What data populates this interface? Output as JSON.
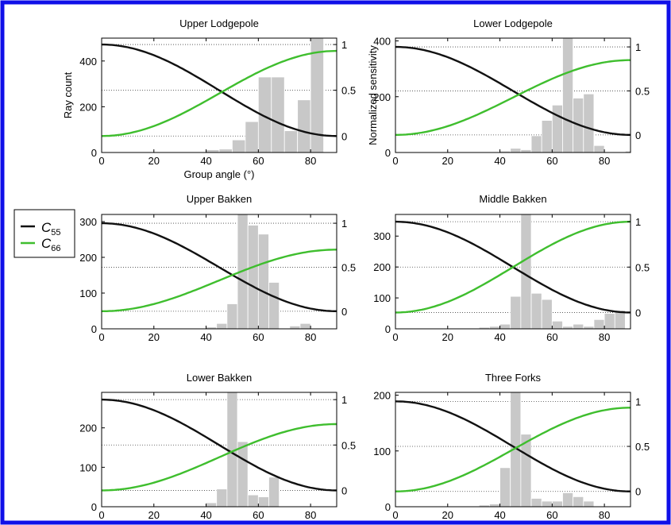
{
  "colors": {
    "frame": "#1010e8",
    "c55": "#111111",
    "c66": "#3fbe2e",
    "bars": "#c8c8c8",
    "grid": "#444444"
  },
  "legend": {
    "items": [
      {
        "key": "c55",
        "label_main": "C",
        "label_sub": "55"
      },
      {
        "key": "c66",
        "label_main": "C",
        "label_sub": "66"
      }
    ]
  },
  "chart_data": [
    {
      "type": "bar",
      "title": "Upper Lodgepole",
      "xlabel": "Group angle (°)",
      "ylabel": "Ray count",
      "y2label": "",
      "xlim": [
        0,
        90
      ],
      "xticks": [
        0,
        20,
        40,
        60,
        80
      ],
      "ylim": [
        0,
        500
      ],
      "yticks": [
        0,
        200,
        400
      ],
      "y2lim": [
        -0.18,
        1.07
      ],
      "y2ticks": [
        0,
        0.5,
        1
      ],
      "y2ticklabels": [
        "0",
        "0.5",
        "1"
      ],
      "grid": "right-axis dotted at 0, 0.5, 1",
      "histogram": {
        "bin_width": 5,
        "bin_starts": [
          0,
          5,
          10,
          15,
          20,
          25,
          30,
          35,
          40,
          45,
          50,
          55,
          60,
          65,
          70,
          75,
          80,
          85
        ],
        "counts": [
          0,
          0,
          0,
          0,
          0,
          0,
          0,
          2,
          12,
          15,
          55,
          135,
          330,
          330,
          95,
          230,
          500,
          0
        ]
      },
      "series": [
        {
          "name": "C55",
          "type": "line",
          "curve": "decreasing",
          "y_start": 1.0,
          "y_end": 0.0
        },
        {
          "name": "C66",
          "type": "line",
          "curve": "increasing",
          "y_start": 0.0,
          "y_end": 0.93
        }
      ]
    },
    {
      "type": "bar",
      "title": "Lower Lodgepole",
      "xlabel": "",
      "ylabel": "",
      "y2label": "Normalized sensitivity",
      "xlim": [
        0,
        90
      ],
      "xticks": [
        0,
        20,
        40,
        60,
        80
      ],
      "ylim": [
        0,
        410
      ],
      "yticks": [
        0,
        200,
        400
      ],
      "y2lim": [
        -0.2,
        1.1
      ],
      "y2ticks": [
        0,
        0.5,
        1
      ],
      "y2ticklabels": [
        "0",
        "0.5",
        "1"
      ],
      "grid": "right-axis dotted at 0, 0.5, 1",
      "histogram": {
        "bin_width": 4,
        "bin_starts": [
          0,
          4,
          8,
          12,
          16,
          20,
          24,
          28,
          32,
          36,
          40,
          44,
          48,
          52,
          56,
          60,
          64,
          68,
          72,
          76,
          80,
          84,
          88
        ],
        "counts": [
          0,
          0,
          0,
          0,
          0,
          0,
          0,
          0,
          0,
          2,
          5,
          15,
          10,
          60,
          115,
          170,
          415,
          195,
          210,
          25,
          0,
          0,
          5
        ]
      },
      "series": [
        {
          "name": "C55",
          "type": "line",
          "curve": "decreasing",
          "y_start": 1.0,
          "y_end": 0.0
        },
        {
          "name": "C66",
          "type": "line",
          "curve": "increasing",
          "y_start": 0.0,
          "y_end": 0.85
        }
      ]
    },
    {
      "type": "bar",
      "title": "Upper Bakken",
      "xlabel": "",
      "ylabel": "",
      "y2label": "",
      "xlim": [
        0,
        90
      ],
      "xticks": [
        0,
        20,
        40,
        60,
        80
      ],
      "ylim": [
        0,
        320
      ],
      "yticks": [
        0,
        100,
        200,
        300
      ],
      "y2lim": [
        -0.2,
        1.1
      ],
      "y2ticks": [
        0,
        0.5,
        1
      ],
      "y2ticklabels": [
        "0",
        "0.5",
        "1"
      ],
      "grid": "right-axis dotted at 0, 0.5, 1",
      "histogram": {
        "bin_width": 4,
        "bin_starts": [
          0,
          4,
          8,
          12,
          16,
          20,
          24,
          28,
          32,
          36,
          40,
          44,
          48,
          52,
          56,
          60,
          64,
          68,
          72,
          76,
          80,
          84,
          88
        ],
        "counts": [
          0,
          0,
          0,
          0,
          0,
          0,
          0,
          0,
          0,
          2,
          5,
          15,
          70,
          320,
          290,
          265,
          130,
          0,
          8,
          15,
          0,
          0,
          0
        ]
      },
      "series": [
        {
          "name": "C55",
          "type": "line",
          "curve": "decreasing",
          "y_start": 1.0,
          "y_end": 0.0
        },
        {
          "name": "C66",
          "type": "line",
          "curve": "increasing",
          "y_start": 0.0,
          "y_end": 0.7
        }
      ]
    },
    {
      "type": "bar",
      "title": "Middle Bakken",
      "xlabel": "",
      "ylabel": "",
      "y2label": "",
      "xlim": [
        0,
        90
      ],
      "xticks": [
        0,
        20,
        40,
        60,
        80
      ],
      "ylim": [
        0,
        370
      ],
      "yticks": [
        0,
        100,
        200,
        300
      ],
      "y2lim": [
        -0.18,
        1.08
      ],
      "y2ticks": [
        0,
        0.5,
        1
      ],
      "y2ticklabels": [
        "0",
        "0.5",
        "1"
      ],
      "grid": "right-axis dotted at 0, 0.5, 1",
      "histogram": {
        "bin_width": 4,
        "bin_starts": [
          0,
          4,
          8,
          12,
          16,
          20,
          24,
          28,
          32,
          36,
          40,
          44,
          48,
          52,
          56,
          60,
          64,
          68,
          72,
          76,
          80,
          84,
          88
        ],
        "counts": [
          0,
          0,
          0,
          0,
          0,
          0,
          0,
          0,
          5,
          8,
          15,
          105,
          370,
          115,
          95,
          25,
          8,
          15,
          8,
          30,
          50,
          60,
          0
        ]
      },
      "series": [
        {
          "name": "C55",
          "type": "line",
          "curve": "decreasing",
          "y_start": 1.0,
          "y_end": 0.0
        },
        {
          "name": "C66",
          "type": "line",
          "curve": "increasing",
          "y_start": 0.0,
          "y_end": 1.0
        }
      ]
    },
    {
      "type": "bar",
      "title": "Lower Bakken",
      "xlabel": "",
      "ylabel": "",
      "y2label": "",
      "xlim": [
        0,
        90
      ],
      "xticks": [
        0,
        20,
        40,
        60,
        80
      ],
      "ylim": [
        0,
        290
      ],
      "yticks": [
        0,
        100,
        200
      ],
      "y2lim": [
        -0.18,
        1.08
      ],
      "y2ticks": [
        0,
        0.5,
        1
      ],
      "y2ticklabels": [
        "0",
        "0.5",
        "1"
      ],
      "grid": "right-axis dotted at 0, 0.5, 1",
      "histogram": {
        "bin_width": 4,
        "bin_starts": [
          0,
          4,
          8,
          12,
          16,
          20,
          24,
          28,
          32,
          36,
          40,
          44,
          48,
          52,
          56,
          60,
          64,
          68,
          72,
          76,
          80,
          84,
          88
        ],
        "counts": [
          0,
          0,
          0,
          0,
          0,
          0,
          0,
          0,
          0,
          0,
          10,
          45,
          290,
          165,
          30,
          25,
          75,
          0,
          0,
          0,
          0,
          0,
          0
        ]
      },
      "series": [
        {
          "name": "C55",
          "type": "line",
          "curve": "decreasing",
          "y_start": 1.0,
          "y_end": 0.0
        },
        {
          "name": "C66",
          "type": "line",
          "curve": "increasing",
          "y_start": 0.0,
          "y_end": 0.73
        }
      ]
    },
    {
      "type": "bar",
      "title": "Three Forks",
      "xlabel": "",
      "ylabel": "",
      "y2label": "",
      "xlim": [
        0,
        90
      ],
      "xticks": [
        0,
        20,
        40,
        60,
        80
      ],
      "ylim": [
        0,
        205
      ],
      "yticks": [
        0,
        100,
        200
      ],
      "y2lim": [
        -0.17,
        1.1
      ],
      "y2ticks": [
        0,
        0.5,
        1
      ],
      "y2ticklabels": [
        "0",
        "0.5",
        "1"
      ],
      "grid": "right-axis dotted at 0, 0.5, 1",
      "histogram": {
        "bin_width": 4,
        "bin_starts": [
          0,
          4,
          8,
          12,
          16,
          20,
          24,
          28,
          32,
          36,
          40,
          44,
          48,
          52,
          56,
          60,
          64,
          68,
          72,
          76,
          80,
          84,
          88
        ],
        "counts": [
          0,
          0,
          0,
          0,
          0,
          0,
          0,
          0,
          3,
          5,
          70,
          205,
          130,
          15,
          10,
          10,
          25,
          18,
          10,
          0,
          0,
          0,
          0
        ]
      },
      "series": [
        {
          "name": "C55",
          "type": "line",
          "curve": "decreasing",
          "y_start": 1.0,
          "y_end": 0.0
        },
        {
          "name": "C66",
          "type": "line",
          "curve": "increasing",
          "y_start": 0.0,
          "y_end": 0.93
        }
      ]
    }
  ]
}
